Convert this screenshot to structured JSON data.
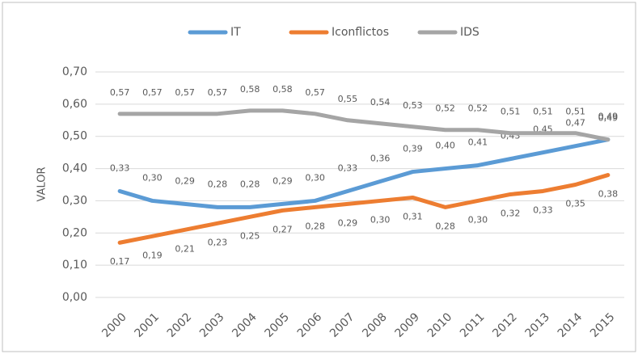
{
  "chart_data": {
    "type": "line",
    "categories": [
      "2000",
      "2001",
      "2002",
      "2003",
      "2004",
      "2005",
      "2006",
      "2007",
      "2008",
      "2009",
      "2010",
      "2011",
      "2012",
      "2013",
      "2014",
      "2015"
    ],
    "y_label": "VALOR",
    "ylim": [
      0,
      0.7
    ],
    "yticks": [
      {
        "value": 0,
        "label": "0,00"
      },
      {
        "value": 0.1,
        "label": "0,10"
      },
      {
        "value": 0.2,
        "label": "0,20"
      },
      {
        "value": 0.3,
        "label": "0,30"
      },
      {
        "value": 0.4,
        "label": "0,40"
      },
      {
        "value": 0.5,
        "label": "0,50"
      },
      {
        "value": 0.6,
        "label": "0,60"
      },
      {
        "value": 0.7,
        "label": "0,70"
      }
    ],
    "grid": true,
    "legend": "top",
    "series": [
      {
        "name": "IT",
        "color": "#5b9bd5",
        "values": [
          0.33,
          0.3,
          0.29,
          0.28,
          0.28,
          0.29,
          0.3,
          0.33,
          0.36,
          0.39,
          0.4,
          0.41,
          0.43,
          0.45,
          0.47,
          0.49
        ],
        "value_labels": [
          "0,33",
          "0,30",
          "0,29",
          "0,28",
          "0,28",
          "0,29",
          "0,30",
          "0,33",
          "0,36",
          "0,39",
          "0,40",
          "0,41",
          "0,43",
          "0,45",
          "0,47",
          "0,49"
        ]
      },
      {
        "name": "Iconflictos",
        "color": "#ed7d31",
        "values": [
          0.17,
          0.19,
          0.21,
          0.23,
          0.25,
          0.27,
          0.28,
          0.29,
          0.3,
          0.31,
          0.28,
          0.3,
          0.32,
          0.33,
          0.35,
          0.38
        ],
        "value_labels": [
          "0,17",
          "0,19",
          "0,21",
          "0,23",
          "0,25",
          "0,27",
          "0,28",
          "0,29",
          "0,30",
          "0,31",
          "0,28",
          "0,30",
          "0,32",
          "0,33",
          "0,35",
          "0,38"
        ]
      },
      {
        "name": "IDS",
        "color": "#a5a5a5",
        "values": [
          0.57,
          0.57,
          0.57,
          0.57,
          0.58,
          0.58,
          0.57,
          0.55,
          0.54,
          0.53,
          0.52,
          0.52,
          0.51,
          0.51,
          0.51,
          0.49
        ],
        "value_labels": [
          "0,57",
          "0,57",
          "0,57",
          "0,57",
          "0,58",
          "0,58",
          "0,57",
          "0,55",
          "0,54",
          "0,53",
          "0,52",
          "0,52",
          "0,51",
          "0,51",
          "0,51",
          "0,49"
        ]
      }
    ]
  }
}
